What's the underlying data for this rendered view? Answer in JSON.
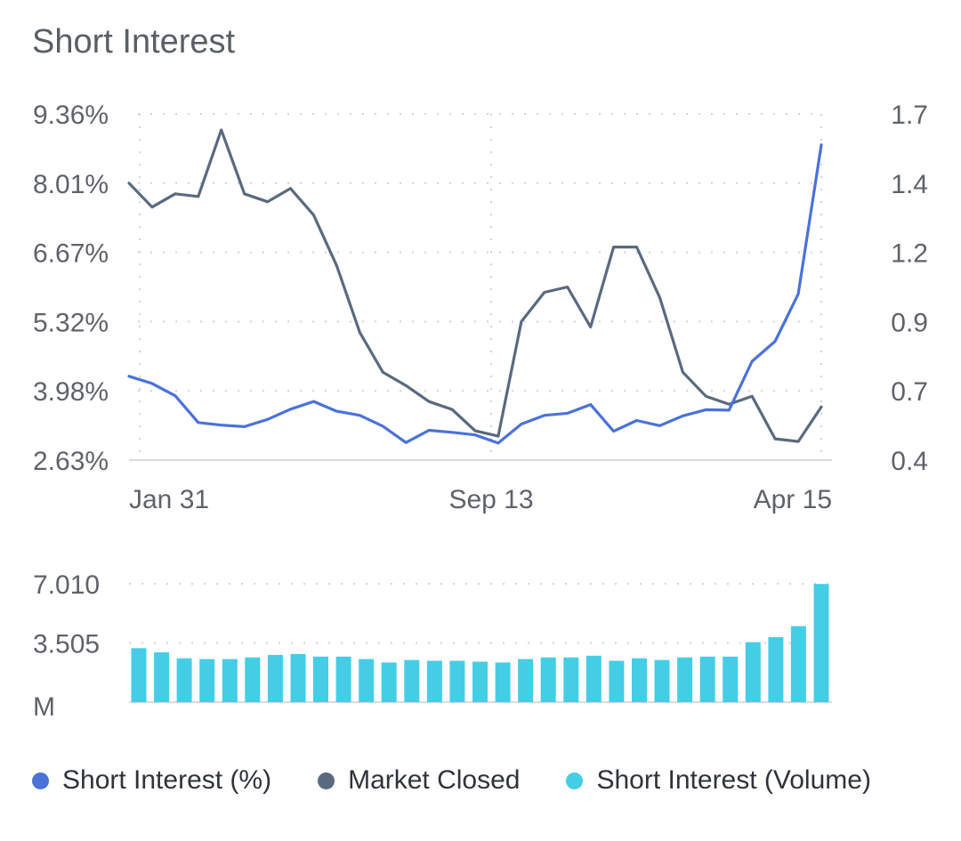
{
  "title": "Short Interest",
  "colors": {
    "short_interest_pct": "#4a72d9",
    "market_closed": "#5a6a7e",
    "short_interest_volume": "#45cde6"
  },
  "chart_data": [
    {
      "type": "line",
      "title": "Short Interest",
      "x_labels": [
        "Jan 31",
        "Sep 13",
        "Apr 15"
      ],
      "y_left": {
        "ticks": [
          "2.63%",
          "3.98%",
          "5.32%",
          "6.67%",
          "8.01%",
          "9.36%"
        ],
        "range": [
          2.63,
          9.36
        ]
      },
      "y_right": {
        "ticks": [
          "0.4",
          "0.7",
          "0.9",
          "1.2",
          "1.4",
          "1.7"
        ],
        "range": [
          0.4,
          1.7
        ]
      },
      "grid": true,
      "series": [
        {
          "name": "Short Interest (%)",
          "axis": "left",
          "values": [
            4.26,
            4.12,
            3.88,
            3.36,
            3.31,
            3.28,
            3.42,
            3.62,
            3.77,
            3.58,
            3.5,
            3.29,
            2.97,
            3.21,
            3.17,
            3.12,
            2.96,
            3.33,
            3.5,
            3.54,
            3.71,
            3.19,
            3.4,
            3.3,
            3.49,
            3.61,
            3.6,
            4.55,
            4.94,
            5.86,
            8.76
          ]
        },
        {
          "name": "Market Closed",
          "axis": "right",
          "values": [
            1.44,
            1.35,
            1.4,
            1.39,
            1.64,
            1.4,
            1.37,
            1.42,
            1.32,
            1.13,
            0.88,
            0.73,
            0.68,
            0.62,
            0.59,
            0.51,
            0.49,
            0.92,
            1.03,
            1.05,
            0.9,
            1.2,
            1.2,
            1.01,
            0.73,
            0.64,
            0.61,
            0.64,
            0.48,
            0.47,
            0.6
          ]
        }
      ]
    },
    {
      "type": "bar",
      "y_ticks": [
        "7.010",
        "3.505"
      ],
      "y_unit": "M",
      "ylim": [
        0,
        7.01
      ],
      "series": [
        {
          "name": "Short Interest (Volume)",
          "values": [
            3.2,
            2.95,
            2.6,
            2.55,
            2.55,
            2.65,
            2.8,
            2.85,
            2.7,
            2.7,
            2.55,
            2.35,
            2.5,
            2.45,
            2.45,
            2.4,
            2.35,
            2.55,
            2.65,
            2.65,
            2.75,
            2.45,
            2.6,
            2.5,
            2.65,
            2.7,
            2.7,
            3.55,
            3.85,
            4.5,
            7.0
          ]
        }
      ]
    }
  ],
  "legend": [
    {
      "label": "Short Interest (%)",
      "color": "#4a72d9"
    },
    {
      "label": "Market Closed",
      "color": "#5a6a7e"
    },
    {
      "label": "Short Interest (Volume)",
      "color": "#45cde6"
    }
  ]
}
